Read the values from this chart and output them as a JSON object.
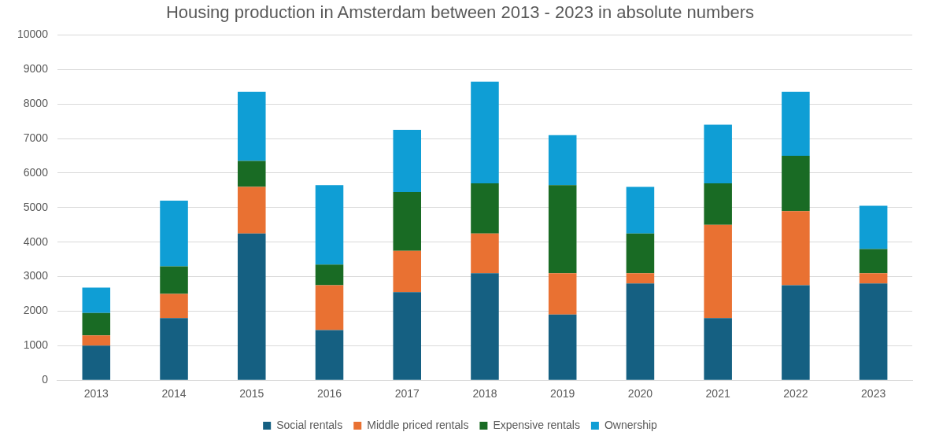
{
  "chart_data": {
    "type": "bar",
    "title": "Housing production in Amsterdam between 2013 - 2023 in absolute numbers",
    "categories": [
      "2013",
      "2014",
      "2015",
      "2016",
      "2017",
      "2018",
      "2019",
      "2020",
      "2021",
      "2022",
      "2023"
    ],
    "stacked": true,
    "series": [
      {
        "name": "Social rentals",
        "color": "#156082",
        "values": [
          1000,
          1800,
          4250,
          1450,
          2550,
          3100,
          1900,
          2800,
          1800,
          2750,
          2800
        ]
      },
      {
        "name": "Middle priced rentals",
        "color": "#e97132",
        "values": [
          300,
          700,
          1350,
          1300,
          1200,
          1150,
          1200,
          300,
          2700,
          2150,
          300
        ]
      },
      {
        "name": "Expensive rentals",
        "color": "#196b24",
        "values": [
          650,
          800,
          750,
          600,
          1700,
          1450,
          2550,
          1150,
          1200,
          1600,
          700
        ]
      },
      {
        "name": "Ownership",
        "color": "#0f9ed5",
        "values": [
          730,
          1900,
          2000,
          2300,
          1800,
          2950,
          1450,
          1350,
          1700,
          1850,
          1250
        ]
      }
    ],
    "ylim": [
      0,
      10000
    ],
    "yticks": [
      0,
      1000,
      2000,
      3000,
      4000,
      5000,
      6000,
      7000,
      8000,
      9000,
      10000
    ],
    "grid": "y",
    "legend": "bottom"
  }
}
